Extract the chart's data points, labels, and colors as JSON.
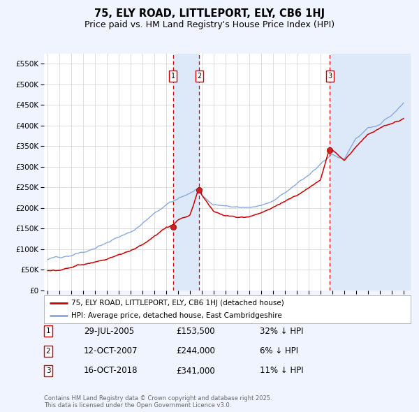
{
  "title": "75, ELY ROAD, LITTLEPORT, ELY, CB6 1HJ",
  "subtitle": "Price paid vs. HM Land Registry's House Price Index (HPI)",
  "ylim": [
    0,
    575000
  ],
  "yticks": [
    0,
    50000,
    100000,
    150000,
    200000,
    250000,
    300000,
    350000,
    400000,
    450000,
    500000,
    550000
  ],
  "ytick_labels": [
    "£0",
    "£50K",
    "£100K",
    "£150K",
    "£200K",
    "£250K",
    "£300K",
    "£350K",
    "£400K",
    "£450K",
    "£500K",
    "£550K"
  ],
  "xlim_start": 1994.7,
  "xlim_end": 2025.6,
  "bg_color": "#f0f4ff",
  "plot_bg_color": "#ffffff",
  "red_line_color": "#cc0000",
  "blue_line_color": "#88aadd",
  "shade_color": "#dde8f8",
  "transaction_dates": [
    2005.57,
    2007.79,
    2018.79
  ],
  "transaction_labels": [
    "1",
    "2",
    "3"
  ],
  "transaction_prices": [
    153500,
    244000,
    341000
  ],
  "transaction_date_strs": [
    "29-JUL-2005",
    "12-OCT-2007",
    "16-OCT-2018"
  ],
  "transaction_hpi_pct": [
    "32% ↓ HPI",
    "6% ↓ HPI",
    "11% ↓ HPI"
  ],
  "transaction_dot_prices": [
    153500,
    244000,
    341000
  ],
  "legend_label_red": "75, ELY ROAD, LITTLEPORT, ELY, CB6 1HJ (detached house)",
  "legend_label_blue": "HPI: Average price, detached house, East Cambridgeshire",
  "footer_text": "Contains HM Land Registry data © Crown copyright and database right 2025.\nThis data is licensed under the Open Government Licence v3.0.",
  "title_fontsize": 10.5,
  "subtitle_fontsize": 9,
  "axis_fontsize": 7.5,
  "hpi_base_points_x": [
    1995,
    1996,
    1997,
    1998,
    1999,
    2000,
    2001,
    2002,
    2003,
    2004,
    2005,
    2006,
    2007,
    2007.5,
    2008,
    2009,
    2010,
    2011,
    2012,
    2013,
    2014,
    2015,
    2016,
    2017,
    2018,
    2019,
    2020,
    2021,
    2022,
    2023,
    2024,
    2025
  ],
  "hpi_base_points_y": [
    75000,
    80000,
    86000,
    93000,
    103000,
    116000,
    132000,
    148000,
    168000,
    192000,
    210000,
    225000,
    240000,
    248000,
    235000,
    210000,
    208000,
    205000,
    205000,
    210000,
    220000,
    238000,
    258000,
    280000,
    305000,
    330000,
    320000,
    370000,
    400000,
    405000,
    430000,
    465000
  ],
  "pp_base_points_x": [
    1995,
    1996,
    1997,
    1998,
    1999,
    2000,
    2001,
    2002,
    2003,
    2004,
    2005,
    2005.57,
    2006,
    2007,
    2007.79,
    2008,
    2009,
    2010,
    2011,
    2012,
    2013,
    2014,
    2015,
    2016,
    2017,
    2018,
    2018.79,
    2019,
    2020,
    2021,
    2022,
    2023,
    2024,
    2025
  ],
  "pp_base_points_y": [
    48000,
    52000,
    56000,
    60000,
    67000,
    75000,
    85000,
    95000,
    110000,
    128000,
    148000,
    153500,
    165000,
    175000,
    244000,
    225000,
    185000,
    175000,
    170000,
    170000,
    178000,
    190000,
    205000,
    220000,
    240000,
    262000,
    341000,
    335000,
    310000,
    340000,
    370000,
    385000,
    400000,
    410000
  ]
}
